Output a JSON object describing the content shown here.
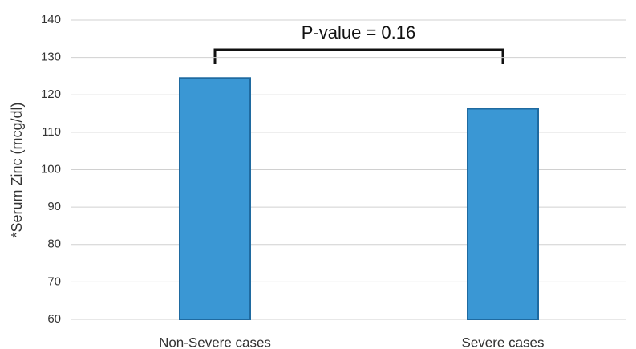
{
  "chart_data": {
    "type": "bar",
    "y_label": "*Serum Zinc (mcg/dl)",
    "annotation": "P-value = 0.16",
    "categories": [
      "Non-Severe cases",
      "Severe cases"
    ],
    "values": [
      124.5,
      116.3
    ],
    "color": "#3a97d4",
    "ylim": [
      60,
      140
    ],
    "yticks": [
      60,
      70,
      80,
      90,
      100,
      110,
      120,
      130,
      140
    ],
    "grid": true
  }
}
